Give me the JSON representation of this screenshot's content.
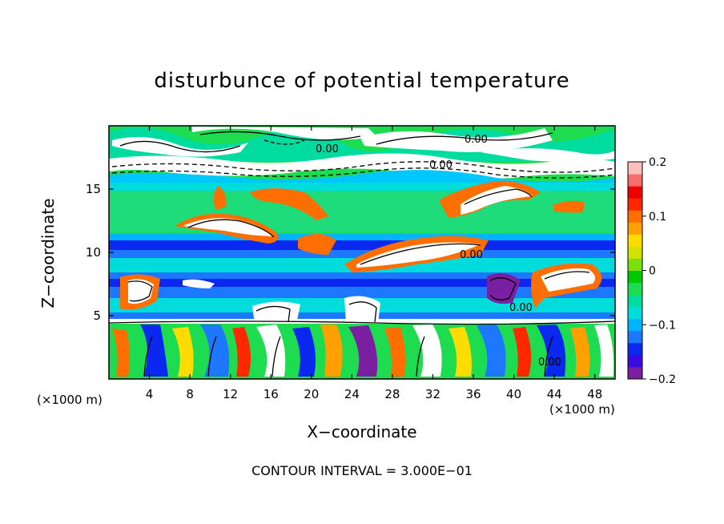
{
  "chart_data": {
    "type": "heatmap",
    "title": "disturbunce of potential temperature",
    "xlabel": "X−coordinate",
    "ylabel": "Z−coordinate",
    "x_unit": "(×1000 m)",
    "xlim": [
      0,
      50
    ],
    "ylim": [
      0,
      20
    ],
    "x_ticks": [
      4,
      8,
      12,
      16,
      20,
      24,
      28,
      32,
      36,
      40,
      44,
      48
    ],
    "y_ticks": [
      5,
      10,
      15
    ],
    "colorbar": {
      "range": [
        -0.2,
        0.2
      ],
      "ticks": [
        "0.2",
        "0.1",
        "0",
        "−0.1",
        "−0.2"
      ],
      "colors": [
        "#7a1fa2",
        "#3a0ae0",
        "#0a28f0",
        "#1e78ff",
        "#00b4ff",
        "#00dcdc",
        "#00dca0",
        "#1edc50",
        "#00c800",
        "#7ce10a",
        "#d2e100",
        "#ffdc00",
        "#ffa000",
        "#ff6e00",
        "#ff2800",
        "#ee0000",
        "#f56e6e",
        "#ffbebe"
      ]
    },
    "contour_labels": [
      "0.00",
      "0.00",
      "0.00",
      "0.00",
      "0.00",
      "0.00"
    ],
    "footer": "CONTOUR INTERVAL = 3.000E−01"
  }
}
